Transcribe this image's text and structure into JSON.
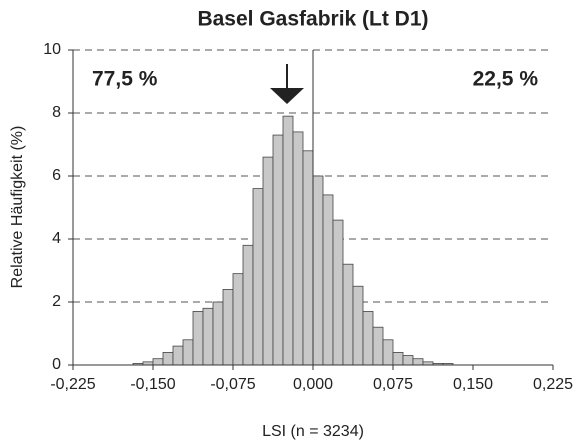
{
  "chart_data": {
    "type": "histogram",
    "title": "Basel Gasfabrik (Lt D1)",
    "x_label": "LSI (n = 3234)",
    "y_label": "Relative Häufigkeit (%)",
    "annotations": [
      "77,5 %",
      "22,5 %"
    ],
    "bins": [
      -0.16875,
      -0.159375,
      -0.15,
      -0.140625,
      -0.13125,
      -0.121875,
      -0.1125,
      -0.103125,
      -0.09375,
      -0.084375,
      -0.075,
      -0.065625,
      -0.05625,
      -0.046875,
      -0.0375,
      -0.028125,
      -0.01875,
      -0.009375,
      0,
      0.009375,
      0.01875,
      0.028125,
      0.0375,
      0.046875,
      0.05625,
      0.065625,
      0.075,
      0.084375,
      0.09375,
      0.103125,
      0.1125,
      0.121875,
      0.13125
    ],
    "values": [
      0.05,
      0.1,
      0.2,
      0.4,
      0.6,
      0.8,
      1.7,
      1.8,
      2.0,
      2.4,
      2.9,
      3.8,
      5.6,
      6.6,
      7.3,
      7.9,
      7.4,
      6.8,
      6.0,
      5.4,
      4.6,
      3.2,
      2.5,
      1.7,
      1.2,
      0.8,
      0.4,
      0.3,
      0.2,
      0.1,
      0.05,
      0.05
    ],
    "color": "#c8c8c8",
    "xlim": [
      -0.225,
      0.225
    ],
    "xticks": [
      {
        "value": -0.225,
        "label": "-0,225"
      },
      {
        "value": -0.15,
        "label": "-0,150"
      },
      {
        "value": -0.075,
        "label": "-0,075"
      },
      {
        "value": 0,
        "label": "0,000"
      },
      {
        "value": 0.075,
        "label": "0,075"
      },
      {
        "value": 0.15,
        "label": "0,150"
      },
      {
        "value": 0.225,
        "label": "0,225"
      }
    ],
    "ylim": [
      0,
      10
    ],
    "yticks": [
      0,
      2,
      4,
      6,
      8,
      10
    ],
    "grid": true
  }
}
